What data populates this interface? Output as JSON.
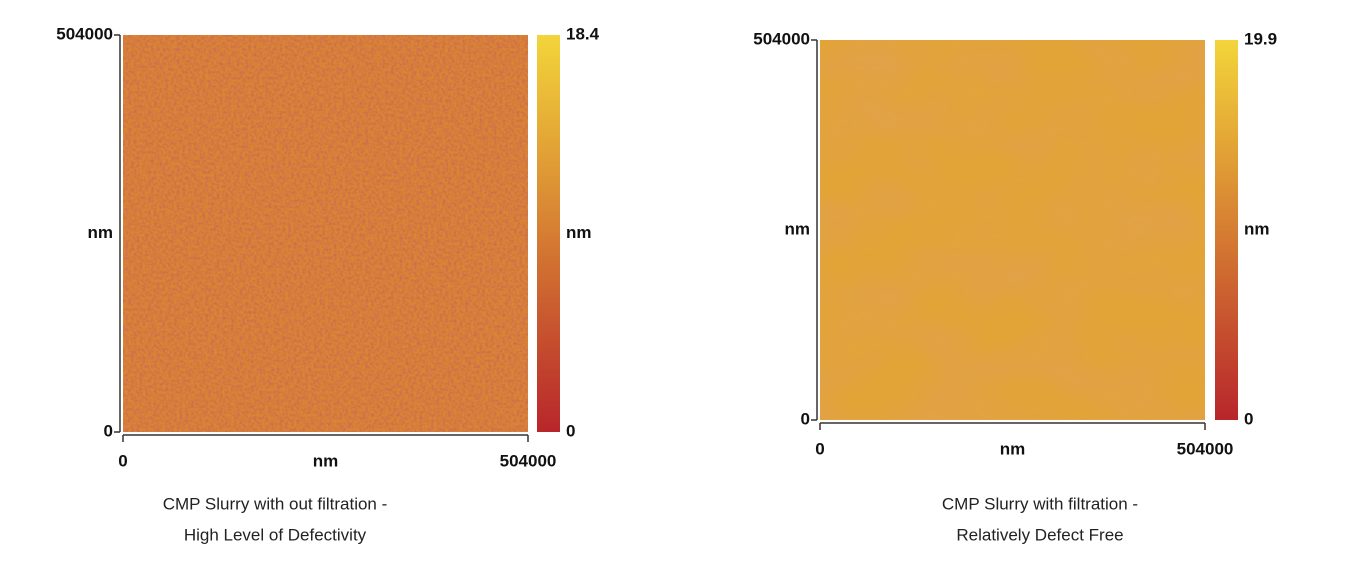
{
  "chart_data": [
    {
      "type": "heatmap",
      "caption": [
        "CMP Slurry with out filtration -",
        "High Level of Defectivity"
      ],
      "xlabel": "nm",
      "ylabel": "nm",
      "xlim": [
        0,
        504000
      ],
      "ylim": [
        0,
        504000
      ],
      "xticks": [
        0,
        504000
      ],
      "yticks": [
        0,
        504000
      ],
      "clim": [
        0,
        18.4
      ],
      "cticks": [
        0,
        18.4
      ],
      "clabel": "nm",
      "colormap": [
        "#b8262b",
        "#f3d53a"
      ]
    },
    {
      "type": "heatmap",
      "caption": [
        "CMP Slurry with filtration -",
        "Relatively Defect Free"
      ],
      "xlabel": "nm",
      "ylabel": "nm",
      "xlim": [
        0,
        504000
      ],
      "ylim": [
        0,
        504000
      ],
      "xticks": [
        0,
        504000
      ],
      "yticks": [
        0,
        504000
      ],
      "clim": [
        0,
        19.9
      ],
      "cticks": [
        0,
        19.9
      ],
      "clabel": "nm",
      "colormap": [
        "#b8262b",
        "#f3d53a"
      ]
    }
  ]
}
